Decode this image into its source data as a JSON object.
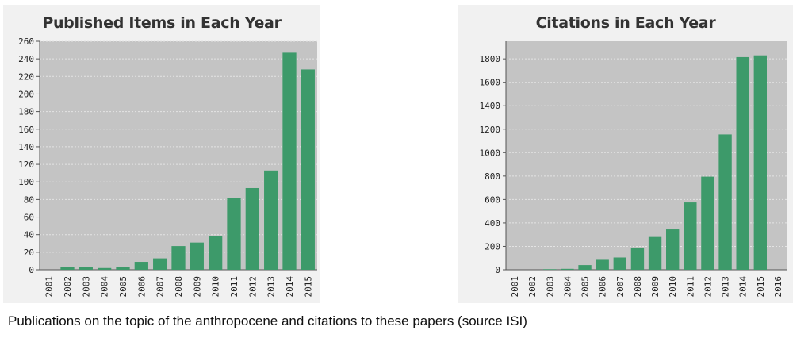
{
  "chart_data": [
    {
      "type": "bar",
      "title": "Published Items in Each Year",
      "categories": [
        "2001",
        "2002",
        "2003",
        "2004",
        "2005",
        "2006",
        "2007",
        "2008",
        "2009",
        "2010",
        "2011",
        "2012",
        "2013",
        "2014",
        "2015"
      ],
      "values": [
        0,
        3,
        3,
        2,
        3,
        9,
        13,
        27,
        31,
        38,
        82,
        93,
        113,
        247,
        228
      ],
      "yticks": [
        0,
        20,
        40,
        60,
        80,
        100,
        120,
        140,
        160,
        180,
        200,
        220,
        240,
        260
      ],
      "ylim": [
        0,
        260
      ],
      "grid": true,
      "bar_color": "#3d9a6a",
      "plot_bg": "#c4c4c4"
    },
    {
      "type": "bar",
      "title": "Citations in Each Year",
      "categories": [
        "2001",
        "2002",
        "2003",
        "2004",
        "2005",
        "2006",
        "2007",
        "2008",
        "2009",
        "2010",
        "2011",
        "2012",
        "2013",
        "2014",
        "2015",
        "2016"
      ],
      "values": [
        0,
        0,
        5,
        8,
        40,
        85,
        105,
        190,
        280,
        345,
        575,
        795,
        1155,
        1815,
        1830,
        0
      ],
      "yticks": [
        0,
        200,
        400,
        600,
        800,
        1000,
        1200,
        1400,
        1600,
        1800
      ],
      "ylim": [
        0,
        1950
      ],
      "grid": true,
      "bar_color": "#3d9a6a",
      "plot_bg": "#c4c4c4"
    }
  ],
  "caption": "Publications on the topic of the anthropocene and citations to these papers (source ISI)"
}
